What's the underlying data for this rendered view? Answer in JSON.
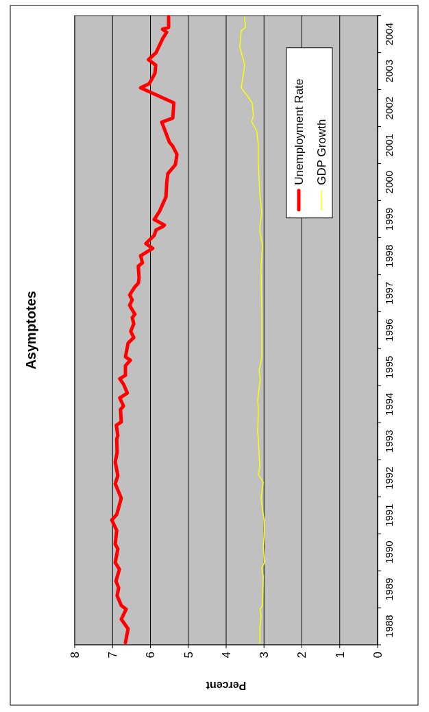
{
  "chart_data": {
    "type": "line",
    "title": "Asymptotes",
    "xlabel": "Percent",
    "xlim": [
      8,
      0
    ],
    "xticks": [
      0,
      1,
      2,
      3,
      4,
      5,
      6,
      7,
      8
    ],
    "ylim": [
      1988,
      2005
    ],
    "yticks": [
      {
        "value": 1988,
        "label": null
      },
      {
        "value": 1988.5,
        "label": "1988"
      },
      {
        "value": 1989,
        "label": null
      },
      {
        "value": 1989.5,
        "label": "1989"
      },
      {
        "value": 1990,
        "label": null
      },
      {
        "value": 1990.5,
        "label": "1990"
      },
      {
        "value": 1991,
        "label": null
      },
      {
        "value": 1991.5,
        "label": "1991"
      },
      {
        "value": 1992,
        "label": null
      },
      {
        "value": 1992.5,
        "label": "1992"
      },
      {
        "value": 1993,
        "label": null
      },
      {
        "value": 1993.5,
        "label": "1993"
      },
      {
        "value": 1994,
        "label": null
      },
      {
        "value": 1994.5,
        "label": "1994"
      },
      {
        "value": 1995,
        "label": null
      },
      {
        "value": 1995.5,
        "label": "1995"
      },
      {
        "value": 1996,
        "label": null
      },
      {
        "value": 1996.5,
        "label": "1996"
      },
      {
        "value": 1997,
        "label": null
      },
      {
        "value": 1997.5,
        "label": "1997"
      },
      {
        "value": 1998,
        "label": null
      },
      {
        "value": 1998.5,
        "label": "1998"
      },
      {
        "value": 1999,
        "label": null
      },
      {
        "value": 1999.5,
        "label": "1999"
      },
      {
        "value": 2000,
        "label": null
      },
      {
        "value": 2000.5,
        "label": "2000"
      },
      {
        "value": 2001,
        "label": null
      },
      {
        "value": 2001.5,
        "label": "2001"
      },
      {
        "value": 2002,
        "label": null
      },
      {
        "value": 2002.5,
        "label": "2002"
      },
      {
        "value": 2003,
        "label": null
      },
      {
        "value": 2003.5,
        "label": "2003"
      },
      {
        "value": 2004,
        "label": null
      },
      {
        "value": 2004.5,
        "label": "2004"
      },
      {
        "value": 2005,
        "label": null
      }
    ],
    "grid": "x",
    "legend": "top right",
    "line_style": "solid",
    "series": [
      {
        "name": "Unemployment Rate",
        "color": "#ff0000",
        "values": [
          1988.06,
          1988.43,
          1988.69,
          1988.96,
          1989.06,
          1989.33,
          1989.54,
          1989.72,
          1990.04,
          1990.22,
          1990.59,
          1990.72,
          1991.09,
          1991.37,
          1991.52,
          1991.96,
          1992.35,
          1992.57,
          1992.94,
          1993.19,
          1993.56,
          1993.65,
          1993.93,
          1994.02,
          1994.36,
          1994.45,
          1994.67,
          1994.8,
          1995.04,
          1995.19,
          1995.28,
          1995.54,
          1995.69,
          1995.78,
          1996.15,
          1996.3,
          1996.47,
          1996.67,
          1996.84,
          1996.93,
          1997.17,
          1997.32,
          1997.45,
          1997.67,
          1997.77,
          1997.91,
          1998.23,
          1998.32,
          1998.51,
          1998.71,
          1998.84,
          1999.06,
          1999.21,
          1999.3,
          1999.34,
          1999.49,
          1999.71,
          2000.1,
          2000.47,
          2000.73,
          2000.97,
          2001.25,
          2001.47,
          2001.58,
          2001.77,
          2002.12,
          2002.23,
          2002.64,
          2003.05,
          2003.16,
          2003.44,
          2003.66,
          2003.81,
          2004.0,
          2004.37,
          2004.55,
          2004.63,
          2004.68,
          2004.96
        ],
        "x": [
          6.66,
          6.59,
          6.77,
          6.64,
          6.77,
          6.88,
          6.84,
          6.91,
          6.82,
          6.93,
          6.86,
          6.93,
          6.89,
          7.02,
          6.89,
          6.77,
          6.93,
          6.86,
          6.93,
          6.88,
          6.89,
          6.86,
          6.9,
          6.77,
          6.79,
          6.71,
          6.81,
          6.61,
          6.71,
          6.81,
          6.66,
          6.66,
          6.53,
          6.66,
          6.59,
          6.44,
          6.52,
          6.44,
          6.48,
          6.41,
          6.55,
          6.48,
          6.55,
          6.41,
          6.32,
          6.3,
          6.32,
          6.21,
          6.26,
          5.94,
          6.12,
          5.9,
          5.85,
          5.67,
          5.63,
          5.9,
          5.76,
          5.59,
          5.57,
          5.54,
          5.34,
          5.3,
          5.41,
          5.5,
          5.57,
          5.7,
          5.41,
          5.38,
          6.26,
          6.03,
          5.88,
          5.86,
          6.05,
          5.85,
          5.68,
          5.57,
          5.68,
          5.52,
          5.52
        ]
      },
      {
        "name": "GDP Growth",
        "color": "#ffff00",
        "values": [
          1988.06,
          1988.43,
          1988.8,
          1988.96,
          1989.06,
          1989.85,
          1990.07,
          1990.22,
          1990.65,
          1991.09,
          1991.37,
          1991.95,
          1992.39,
          1992.6,
          1992.81,
          1993.56,
          1993.74,
          1994.36,
          1994.6,
          1995.17,
          1995.41,
          1995.75,
          1996.34,
          1996.93,
          1998.19,
          1998.8,
          1999.17,
          1999.3,
          1999.67,
          2000.17,
          2001.03,
          2001.53,
          2001.9,
          2002.14,
          2002.27,
          2002.64,
          2003.05,
          2003.38,
          2003.66,
          2004.16,
          2004.59,
          2004.68,
          2004.96
        ],
        "x": [
          3.11,
          3.11,
          3.08,
          3.11,
          3.04,
          3.02,
          3.06,
          2.99,
          3.02,
          2.99,
          3.0,
          3.08,
          3.02,
          3.15,
          3.11,
          3.15,
          3.17,
          3.15,
          3.17,
          3.1,
          3.13,
          3.06,
          3.06,
          3.06,
          3.08,
          3.04,
          3.11,
          3.11,
          3.06,
          3.11,
          3.15,
          3.15,
          3.2,
          3.33,
          3.28,
          3.31,
          3.6,
          3.55,
          3.51,
          3.64,
          3.6,
          3.49,
          3.51
        ]
      }
    ]
  }
}
